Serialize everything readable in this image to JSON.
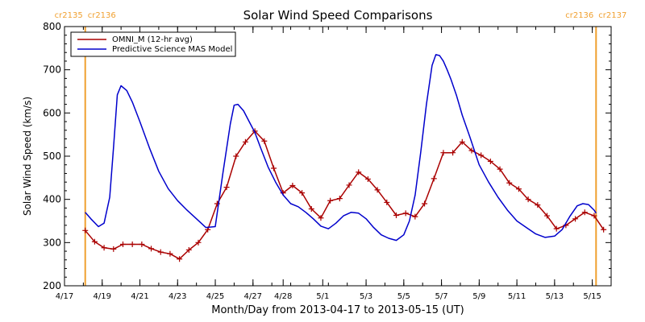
{
  "colors": {
    "omni": "#aa0000",
    "model": "#0000cc",
    "rotation_line": "#f0a030",
    "axis": "#000000",
    "background": "#ffffff"
  },
  "chart_data": {
    "type": "line",
    "title": "Solar Wind Speed Comparisons",
    "xlabel": "Month/Day from 2013-04-17 to 2013-05-15 (UT)",
    "ylabel": "Solar Wind Speed (km/s)",
    "x_units": "days since 2013-04-17 00:00 UT",
    "xlim": [
      0,
      29
    ],
    "ylim": [
      200,
      800
    ],
    "grid": false,
    "legend_position": "top-left",
    "y_ticks": [
      200,
      300,
      400,
      500,
      600,
      700,
      800
    ],
    "x_ticks": [
      {
        "x": 0,
        "label": "4/17"
      },
      {
        "x": 2,
        "label": "4/19"
      },
      {
        "x": 4,
        "label": "4/21"
      },
      {
        "x": 6,
        "label": "4/23"
      },
      {
        "x": 8,
        "label": "4/25"
      },
      {
        "x": 10,
        "label": "4/27"
      },
      {
        "x": 11.6,
        "label": "4/28"
      },
      {
        "x": 13.7,
        "label": "5/1"
      },
      {
        "x": 16,
        "label": "5/3"
      },
      {
        "x": 18,
        "label": "5/5"
      },
      {
        "x": 20,
        "label": "5/7"
      },
      {
        "x": 22,
        "label": "5/9"
      },
      {
        "x": 24,
        "label": "5/11"
      },
      {
        "x": 26,
        "label": "5/13"
      },
      {
        "x": 28,
        "label": "5/15"
      }
    ],
    "rotation_markers": [
      {
        "x": 1.1,
        "left_label": "cr2135",
        "right_label": "cr2136"
      },
      {
        "x": 28.2,
        "left_label": "cr2136",
        "right_label": "cr2137"
      }
    ],
    "series": [
      {
        "name": "OMNI_M (12-hr avg)",
        "marker": "plus",
        "x": [
          1.1,
          1.6,
          2.1,
          2.6,
          3.1,
          3.6,
          4.1,
          4.6,
          5.1,
          5.6,
          6.1,
          6.6,
          7.1,
          7.6,
          8.1,
          8.6,
          9.1,
          9.6,
          10.1,
          10.6,
          11.1,
          11.6,
          12.1,
          12.6,
          13.1,
          13.6,
          14.1,
          14.6,
          15.1,
          15.6,
          16.1,
          16.6,
          17.1,
          17.6,
          18.1,
          18.6,
          19.1,
          19.6,
          20.1,
          20.6,
          21.1,
          21.6,
          22.1,
          22.6,
          23.1,
          23.6,
          24.1,
          24.6,
          25.1,
          25.6,
          26.1,
          26.6,
          27.1,
          27.6,
          28.1,
          28.6
        ],
        "y": [
          328,
          302,
          288,
          285,
          296,
          296,
          296,
          286,
          278,
          274,
          262,
          283,
          300,
          330,
          390,
          428,
          500,
          533,
          558,
          535,
          472,
          415,
          432,
          415,
          378,
          357,
          397,
          402,
          433,
          463,
          447,
          422,
          393,
          363,
          368,
          360,
          390,
          448,
          508,
          508,
          533,
          513,
          502,
          488,
          470,
          438,
          424,
          400,
          387,
          362,
          332,
          340,
          355,
          370,
          362,
          330
        ]
      },
      {
        "name": "Predictive Science MAS Model",
        "marker": "none",
        "x": [
          1.1,
          1.4,
          1.8,
          2.1,
          2.4,
          2.6,
          2.8,
          3.0,
          3.3,
          3.6,
          4.0,
          4.5,
          5.0,
          5.5,
          6.0,
          6.5,
          7.0,
          7.5,
          8.0,
          8.4,
          8.8,
          9.0,
          9.2,
          9.5,
          9.8,
          10.1,
          10.4,
          10.8,
          11.2,
          11.6,
          12.0,
          12.4,
          12.8,
          13.2,
          13.6,
          14.0,
          14.4,
          14.8,
          15.2,
          15.6,
          16.0,
          16.4,
          16.8,
          17.2,
          17.6,
          18.0,
          18.3,
          18.6,
          18.9,
          19.2,
          19.5,
          19.7,
          19.9,
          20.1,
          20.3,
          20.5,
          20.8,
          21.1,
          21.5,
          22.0,
          22.5,
          23.0,
          23.5,
          24.0,
          24.5,
          25.0,
          25.5,
          26.0,
          26.4,
          26.8,
          27.2,
          27.5,
          27.8,
          28.1,
          28.2
        ],
        "y": [
          370,
          355,
          337,
          345,
          405,
          520,
          642,
          663,
          652,
          625,
          580,
          520,
          465,
          425,
          397,
          375,
          355,
          335,
          337,
          460,
          575,
          618,
          620,
          605,
          580,
          555,
          520,
          475,
          440,
          410,
          390,
          383,
          370,
          355,
          338,
          332,
          345,
          362,
          370,
          368,
          355,
          335,
          318,
          310,
          305,
          318,
          350,
          410,
          510,
          620,
          710,
          735,
          733,
          720,
          700,
          678,
          640,
          595,
          545,
          480,
          440,
          405,
          375,
          350,
          335,
          320,
          312,
          315,
          330,
          360,
          385,
          390,
          388,
          375,
          368
        ]
      }
    ]
  }
}
